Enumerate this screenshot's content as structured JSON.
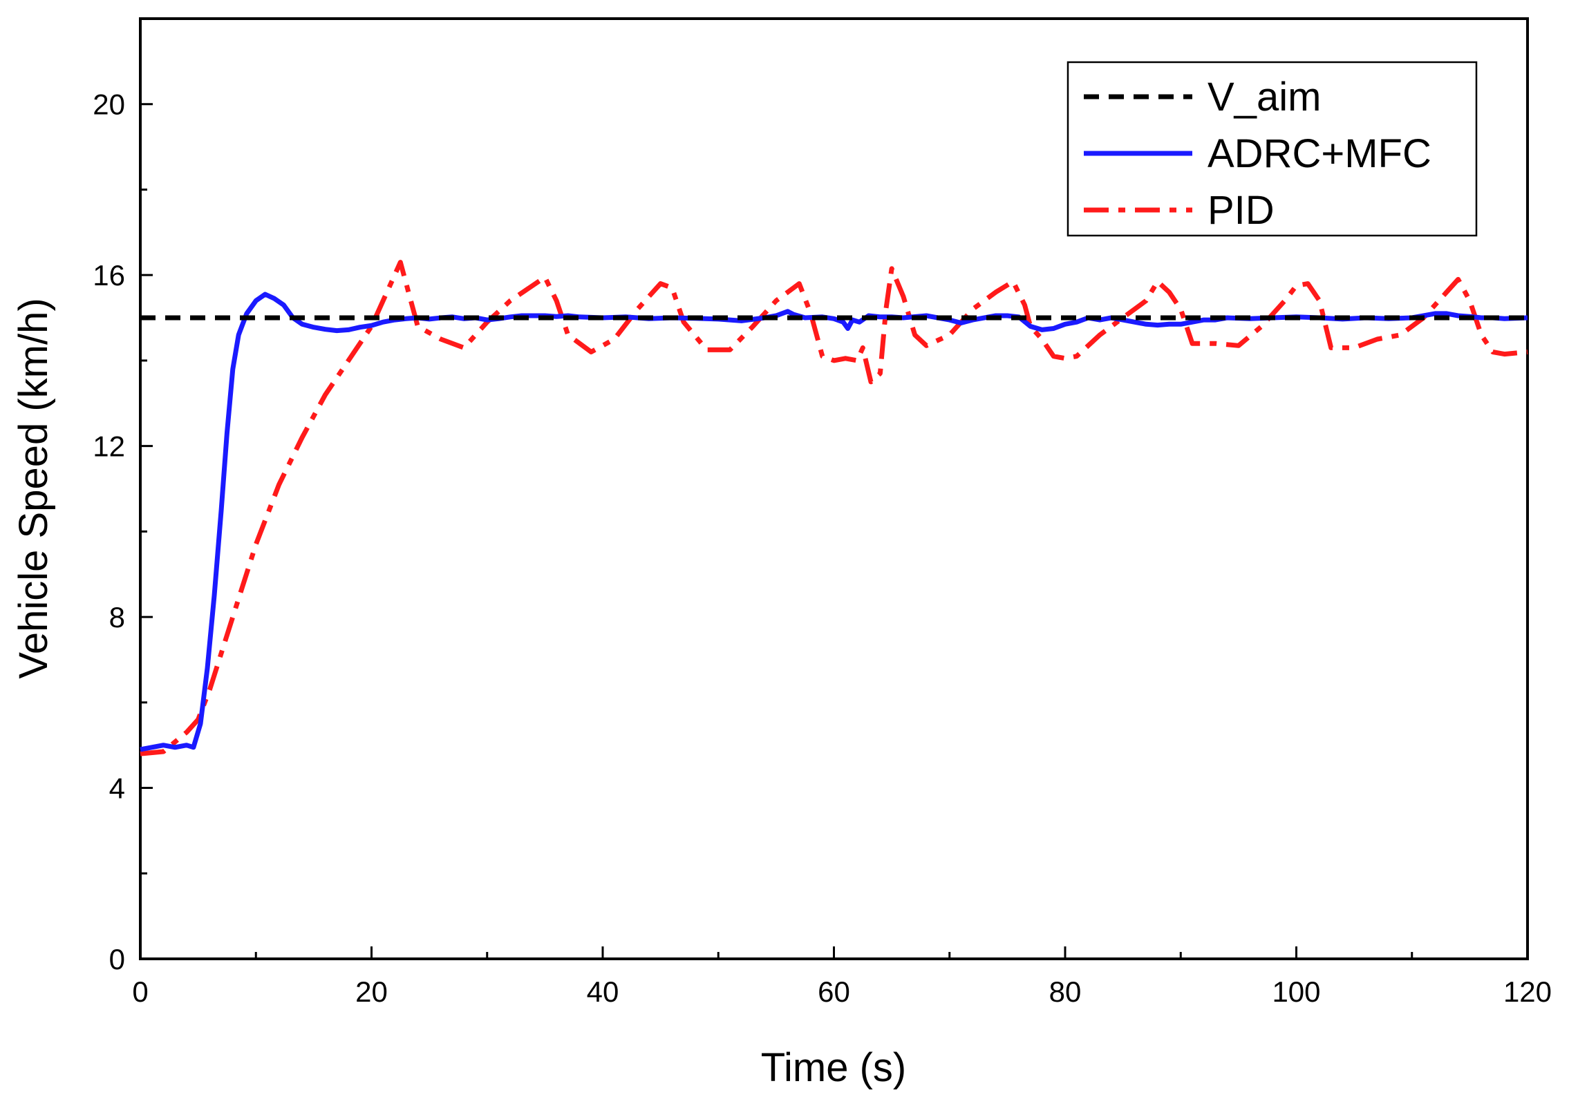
{
  "chart_data": {
    "type": "line",
    "title": "",
    "xlabel": "Time (s)",
    "ylabel": "Vehicle Speed (km/h)",
    "xlim": [
      0,
      120
    ],
    "ylim": [
      0,
      22
    ],
    "x_ticks": [
      0,
      20,
      40,
      60,
      80,
      100,
      120
    ],
    "x_tick_labels": [
      "0",
      "20",
      "40",
      "60",
      "80",
      "100",
      "120"
    ],
    "x_minor_ticks": [
      10,
      30,
      50,
      70,
      90,
      110
    ],
    "y_ticks": [
      0,
      4,
      8,
      12,
      16,
      20
    ],
    "y_tick_labels": [
      "0",
      "4",
      "8",
      "12",
      "16",
      "20"
    ],
    "y_minor_ticks": [
      2,
      6,
      10,
      14,
      18
    ],
    "grid": false,
    "legend_position": "top-right",
    "series": [
      {
        "name": "V_aim",
        "color": "#000000",
        "style": "dashed",
        "points": [
          [
            0,
            15
          ],
          [
            120,
            15
          ]
        ]
      },
      {
        "name": "ADRC+MFC",
        "color": "#1a1aff",
        "style": "solid",
        "points": [
          [
            0,
            4.9
          ],
          [
            1,
            4.95
          ],
          [
            2,
            5.0
          ],
          [
            3,
            4.95
          ],
          [
            4,
            5.0
          ],
          [
            4.6,
            4.95
          ],
          [
            5.2,
            5.5
          ],
          [
            5.8,
            6.8
          ],
          [
            6.4,
            8.5
          ],
          [
            7.0,
            10.5
          ],
          [
            7.5,
            12.3
          ],
          [
            8.0,
            13.8
          ],
          [
            8.5,
            14.6
          ],
          [
            9.2,
            15.1
          ],
          [
            10.0,
            15.4
          ],
          [
            10.8,
            15.55
          ],
          [
            11.6,
            15.45
          ],
          [
            12.4,
            15.3
          ],
          [
            13.2,
            15.0
          ],
          [
            14.0,
            14.85
          ],
          [
            15,
            14.78
          ],
          [
            16,
            14.73
          ],
          [
            17,
            14.7
          ],
          [
            18,
            14.72
          ],
          [
            19,
            14.78
          ],
          [
            20,
            14.82
          ],
          [
            21,
            14.9
          ],
          [
            22,
            14.95
          ],
          [
            23,
            14.98
          ],
          [
            24,
            15.0
          ],
          [
            25,
            14.97
          ],
          [
            26,
            15.0
          ],
          [
            27,
            15.02
          ],
          [
            28,
            14.98
          ],
          [
            29,
            15.0
          ],
          [
            30,
            14.95
          ],
          [
            31,
            14.98
          ],
          [
            32,
            15.02
          ],
          [
            33,
            15.05
          ],
          [
            34,
            15.05
          ],
          [
            35,
            15.05
          ],
          [
            36,
            15.03
          ],
          [
            37,
            15.05
          ],
          [
            38,
            15.02
          ],
          [
            40,
            15.0
          ],
          [
            42,
            15.02
          ],
          [
            44,
            14.98
          ],
          [
            46,
            15.0
          ],
          [
            48,
            14.99
          ],
          [
            50,
            14.97
          ],
          [
            52,
            14.93
          ],
          [
            54,
            15.0
          ],
          [
            55,
            15.05
          ],
          [
            56,
            15.15
          ],
          [
            56.5,
            15.08
          ],
          [
            57.5,
            15.0
          ],
          [
            59,
            15.02
          ],
          [
            60,
            14.98
          ],
          [
            60.8,
            14.9
          ],
          [
            61.2,
            14.75
          ],
          [
            61.6,
            14.95
          ],
          [
            62.2,
            14.9
          ],
          [
            63,
            15.05
          ],
          [
            64,
            15.02
          ],
          [
            65,
            15.02
          ],
          [
            66,
            15.0
          ],
          [
            68,
            15.05
          ],
          [
            70,
            14.95
          ],
          [
            71,
            14.88
          ],
          [
            72,
            14.95
          ],
          [
            74,
            15.05
          ],
          [
            75,
            15.05
          ],
          [
            76,
            15.02
          ],
          [
            77,
            14.8
          ],
          [
            78,
            14.72
          ],
          [
            79,
            14.75
          ],
          [
            80,
            14.85
          ],
          [
            81,
            14.9
          ],
          [
            82,
            15.0
          ],
          [
            83,
            14.95
          ],
          [
            84,
            15.0
          ],
          [
            85,
            14.95
          ],
          [
            86,
            14.9
          ],
          [
            87,
            14.85
          ],
          [
            88,
            14.83
          ],
          [
            89,
            14.85
          ],
          [
            90,
            14.85
          ],
          [
            91,
            14.9
          ],
          [
            92,
            14.95
          ],
          [
            93,
            14.95
          ],
          [
            94,
            15.0
          ],
          [
            96,
            14.98
          ],
          [
            98,
            15.0
          ],
          [
            100,
            15.02
          ],
          [
            102,
            15.0
          ],
          [
            104,
            14.97
          ],
          [
            106,
            15.0
          ],
          [
            108,
            14.98
          ],
          [
            110,
            15.0
          ],
          [
            111,
            15.05
          ],
          [
            112,
            15.1
          ],
          [
            113,
            15.1
          ],
          [
            114,
            15.05
          ],
          [
            115,
            15.03
          ],
          [
            116,
            15.0
          ],
          [
            117,
            15.0
          ],
          [
            118,
            14.98
          ],
          [
            120,
            15.0
          ]
        ]
      },
      {
        "name": "PID",
        "color": "#ff1a1a",
        "style": "dashdot",
        "points": [
          [
            0,
            4.8
          ],
          [
            2,
            4.85
          ],
          [
            4,
            5.3
          ],
          [
            5,
            5.6
          ],
          [
            6,
            6.3
          ],
          [
            8,
            8.0
          ],
          [
            10,
            9.7
          ],
          [
            12,
            11.1
          ],
          [
            14,
            12.2
          ],
          [
            16,
            13.2
          ],
          [
            18,
            14.0
          ],
          [
            20,
            14.8
          ],
          [
            22.5,
            16.3
          ],
          [
            24,
            14.8
          ],
          [
            26,
            14.5
          ],
          [
            28,
            14.3
          ],
          [
            30,
            14.9
          ],
          [
            32,
            15.4
          ],
          [
            35,
            15.95
          ],
          [
            36,
            15.4
          ],
          [
            37,
            14.6
          ],
          [
            39,
            14.2
          ],
          [
            41,
            14.5
          ],
          [
            43,
            15.2
          ],
          [
            45,
            15.8
          ],
          [
            46,
            15.7
          ],
          [
            47,
            14.9
          ],
          [
            49,
            14.25
          ],
          [
            51,
            14.25
          ],
          [
            53,
            14.8
          ],
          [
            55,
            15.4
          ],
          [
            57,
            15.8
          ],
          [
            58,
            15.1
          ],
          [
            59,
            14.1
          ],
          [
            60,
            14.0
          ],
          [
            61,
            14.05
          ],
          [
            62,
            14.0
          ],
          [
            62.5,
            14.3
          ],
          [
            63.2,
            13.5
          ],
          [
            64,
            13.7
          ],
          [
            64.5,
            15.2
          ],
          [
            65,
            16.15
          ],
          [
            66,
            15.5
          ],
          [
            67,
            14.6
          ],
          [
            68,
            14.35
          ],
          [
            70,
            14.6
          ],
          [
            72,
            15.2
          ],
          [
            74,
            15.6
          ],
          [
            75.5,
            15.85
          ],
          [
            76.5,
            15.3
          ],
          [
            77,
            14.8
          ],
          [
            78,
            14.5
          ],
          [
            79,
            14.1
          ],
          [
            80,
            14.05
          ],
          [
            81,
            14.1
          ],
          [
            83,
            14.6
          ],
          [
            85,
            15.0
          ],
          [
            87,
            15.4
          ],
          [
            88,
            15.85
          ],
          [
            89,
            15.6
          ],
          [
            90,
            15.2
          ],
          [
            91,
            14.4
          ],
          [
            93,
            14.4
          ],
          [
            95,
            14.35
          ],
          [
            97,
            14.8
          ],
          [
            99,
            15.4
          ],
          [
            100,
            15.75
          ],
          [
            101,
            15.8
          ],
          [
            102,
            15.4
          ],
          [
            103,
            14.3
          ],
          [
            105,
            14.3
          ],
          [
            107,
            14.5
          ],
          [
            109,
            14.6
          ],
          [
            111,
            15.0
          ],
          [
            113,
            15.6
          ],
          [
            114,
            15.9
          ],
          [
            115,
            15.4
          ],
          [
            116,
            14.6
          ],
          [
            117,
            14.2
          ],
          [
            118,
            14.15
          ],
          [
            120,
            14.2
          ]
        ]
      }
    ]
  }
}
